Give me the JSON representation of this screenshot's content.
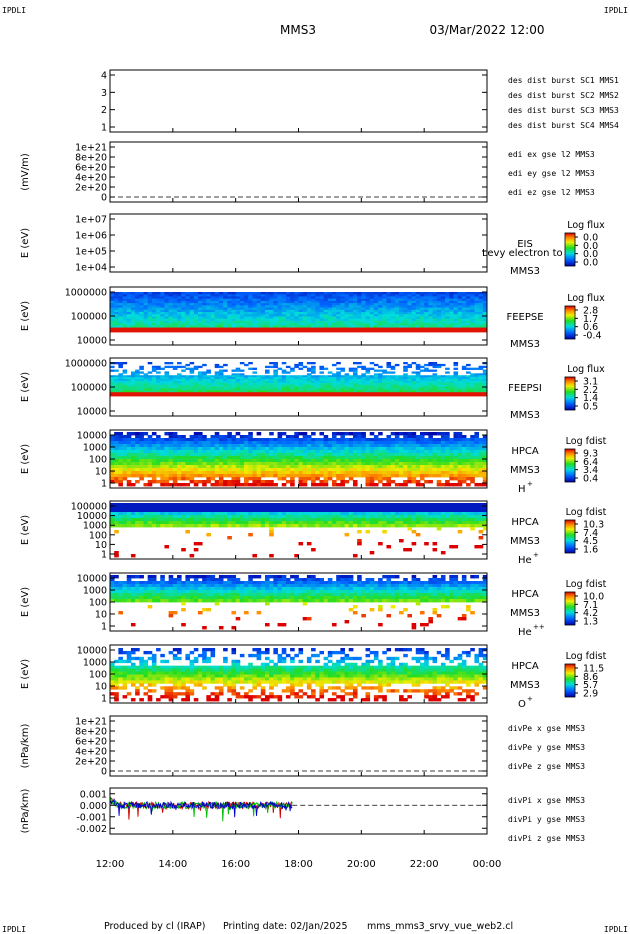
{
  "header": {
    "corner_tl": "IPDLI",
    "corner_tr": "IPDLI",
    "corner_bl": "IPDLI",
    "corner_br": "IPDLI",
    "mission": "MMS3",
    "datetime": "03/Mar/2022 12:00"
  },
  "footer": {
    "produced_by": "Produced by cl (IRAP)",
    "printing_date": "Printing date: 02/Jan/2025",
    "file": "mms_mms3_srvy_vue_web2.cl"
  },
  "colors": {
    "blue": "#0000cc",
    "magenta": "#cc00cc",
    "red": "#cc0000",
    "green": "#00bb00"
  },
  "chart_data": [
    {
      "id": "burst",
      "type": "line",
      "yticks": [
        "1",
        "2",
        "3",
        "4"
      ],
      "ylabel": "",
      "legend": [
        {
          "text": "des dist burst SC1 MMS1",
          "color": "#0000cc"
        },
        {
          "text": "des dist burst SC2 MMS2",
          "color": "#cc00cc"
        },
        {
          "text": "des dist burst SC3 MMS3",
          "color": "#cc0000"
        },
        {
          "text": "des dist burst SC4 MMS4",
          "color": "#00bb00"
        }
      ]
    },
    {
      "id": "edi",
      "type": "line",
      "yticks": [
        "0",
        "2e+20",
        "4e+20",
        "6e+20",
        "8e+20",
        "1e+21"
      ],
      "ylabel": "(mV/m)",
      "legend": [
        {
          "text": "edi ex gse l2 MMS3",
          "color": "#cc0000"
        },
        {
          "text": "edi ey gse l2 MMS3",
          "color": "#00bb00"
        },
        {
          "text": "edi ez gse l2 MMS3",
          "color": "#0000cc"
        }
      ]
    },
    {
      "id": "eis",
      "type": "heatmap",
      "yticks": [
        "1e+04",
        "1e+05",
        "1e+06",
        "1e+07"
      ],
      "ylabel": "E (eV)",
      "side_labels": [
        "EIS",
        "MMS3"
      ],
      "overlay": "Levy electron to",
      "cbar_title": "Log flux",
      "cbar_ticks": [
        "0.0",
        "0.0",
        "0.0",
        "0.0"
      ]
    },
    {
      "id": "feepse",
      "type": "heatmap",
      "yticks": [
        "10000",
        "100000",
        "1000000"
      ],
      "ylabel": "E (eV)",
      "side_labels": [
        "FEEPSE",
        "MMS3"
      ],
      "cbar_title": "Log flux",
      "cbar_ticks": [
        "2.8",
        "1.7",
        "0.6",
        "-0.4"
      ]
    },
    {
      "id": "feepsi",
      "type": "heatmap",
      "yticks": [
        "10000",
        "100000",
        "1000000"
      ],
      "ylabel": "E (eV)",
      "side_labels": [
        "FEEPSI",
        "MMS3"
      ],
      "cbar_title": "Log flux",
      "cbar_ticks": [
        "3.1",
        "2.2",
        "1.4",
        "0.5"
      ]
    },
    {
      "id": "hpca_h",
      "type": "heatmap",
      "yticks": [
        "1",
        "10",
        "100",
        "1000",
        "10000"
      ],
      "ylabel": "E (eV)",
      "side_labels": [
        "HPCA",
        "MMS3"
      ],
      "species": "H",
      "charge": "+",
      "cbar_title": "Log fdist",
      "cbar_ticks": [
        "9.3",
        "6.4",
        "3.4",
        "0.4"
      ]
    },
    {
      "id": "hpca_he",
      "type": "heatmap",
      "yticks": [
        "1",
        "10",
        "100",
        "1000",
        "10000",
        "100000"
      ],
      "ylabel": "E (eV)",
      "side_labels": [
        "HPCA",
        "MMS3"
      ],
      "species": "He",
      "charge": "+",
      "cbar_title": "Log fdist",
      "cbar_ticks": [
        "10.3",
        "7.4",
        "4.5",
        "1.6"
      ]
    },
    {
      "id": "hpca_hepp",
      "type": "heatmap",
      "yticks": [
        "1",
        "10",
        "100",
        "1000",
        "10000"
      ],
      "ylabel": "E (eV)",
      "side_labels": [
        "HPCA",
        "MMS3"
      ],
      "species": "He",
      "charge": "++",
      "cbar_title": "Log fdist",
      "cbar_ticks": [
        "10.0",
        "7.1",
        "4.2",
        "1.3"
      ]
    },
    {
      "id": "hpca_o",
      "type": "heatmap",
      "yticks": [
        "1",
        "10",
        "100",
        "1000",
        "10000"
      ],
      "ylabel": "E (eV)",
      "side_labels": [
        "HPCA",
        "MMS3"
      ],
      "species": "O",
      "charge": "+",
      "cbar_title": "Log fdist",
      "cbar_ticks": [
        "11.5",
        "8.6",
        "5.7",
        "2.9"
      ]
    },
    {
      "id": "divpe",
      "type": "line",
      "yticks": [
        "0",
        "2e+20",
        "4e+20",
        "6e+20",
        "8e+20",
        "1e+21"
      ],
      "ylabel": "(nPa/km)",
      "legend": [
        {
          "text": "divPe x gse MMS3",
          "color": "#cc0000"
        },
        {
          "text": "divPe y gse MMS3",
          "color": "#00bb00"
        },
        {
          "text": "divPe z gse MMS3",
          "color": "#0000cc"
        }
      ]
    },
    {
      "id": "divpi",
      "type": "line",
      "yticks": [
        "-0.002",
        "-0.001",
        "0.000",
        "0.001"
      ],
      "ylabel": "(nPa/km)",
      "ylim": [
        -0.0025,
        0.0015
      ],
      "legend": [
        {
          "text": "divPi x gse MMS3",
          "color": "#cc0000"
        },
        {
          "text": "divPi y gse MMS3",
          "color": "#00bb00"
        },
        {
          "text": "divPi z gse MMS3",
          "color": "#0000cc"
        }
      ],
      "data_end_hour": 17.8
    }
  ],
  "xaxis": {
    "ticks": [
      "12:00",
      "14:00",
      "16:00",
      "18:00",
      "20:00",
      "22:00",
      "00:00"
    ],
    "range_hours": [
      12,
      24
    ]
  }
}
